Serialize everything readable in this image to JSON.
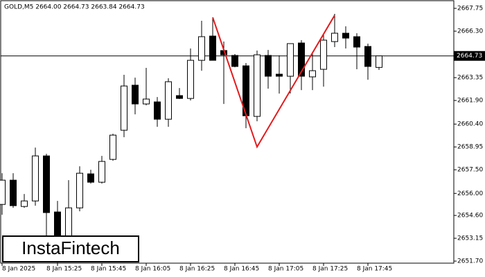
{
  "chart_data": {
    "type": "candlestick",
    "title": "GOLD,M5  2664.00 2664.73 2663.84 2664.73",
    "watermark": "InstaFintech",
    "categories": [
      "8 Jan 2025",
      null,
      null,
      null,
      null,
      "8 Jan 15:25",
      null,
      null,
      null,
      "8 Jan 15:45",
      null,
      null,
      null,
      "8 Jan 16:05",
      null,
      null,
      null,
      "8 Jan 16:25",
      null,
      null,
      null,
      "8 Jan 16:45",
      null,
      null,
      null,
      "8 Jan 17:05",
      null,
      null,
      null,
      "8 Jan 17:25",
      null,
      null,
      null,
      "8 Jan 17:45",
      null
    ],
    "open": [
      2655.3,
      2656.84,
      2655.17,
      2655.52,
      2658.38,
      2654.82,
      2652.88,
      2655.08,
      2657.24,
      2656.71,
      2658.16,
      2660.01,
      2662.87,
      2661.68,
      2661.81,
      2660.71,
      2662.21,
      2662.03,
      2664.45,
      2665.99,
      2665.07,
      2664.76,
      2664.1,
      2660.89,
      2664.76,
      2663.57,
      2663.44,
      2665.55,
      2663.4,
      2663.88,
      2665.64,
      2666.17,
      2665.95,
      2665.33,
      2664.0
    ],
    "high": [
      2657.28,
      2657.28,
      2655.96,
      2658.91,
      2658.51,
      2655.52,
      2656.84,
      2657.72,
      2657.5,
      2658.38,
      2659.79,
      2663.53,
      2663.35,
      2663.97,
      2662.12,
      2663.31,
      2662.69,
      2665.2,
      2666.96,
      2667.09,
      2665.64,
      2664.85,
      2664.28,
      2665.07,
      2665.11,
      2664.76,
      2665.51,
      2665.73,
      2664.85,
      2666.08,
      2667.4,
      2666.61,
      2666.17,
      2665.51,
      2664.73
    ],
    "low": [
      2654.64,
      2655.08,
      2655.08,
      2655.22,
      2653.1,
      2651.6,
      2652.22,
      2654.86,
      2656.62,
      2656.62,
      2658.07,
      2659.57,
      2661.02,
      2661.59,
      2660.23,
      2660.23,
      2661.99,
      2661.9,
      2663.79,
      2664.45,
      2661.68,
      2664.01,
      2660.14,
      2660.58,
      2662.65,
      2662.34,
      2662.34,
      2662.56,
      2662.56,
      2662.78,
      2665.29,
      2665.2,
      2663.88,
      2663.22,
      2663.84
    ],
    "close": [
      2656.84,
      2655.22,
      2655.52,
      2658.38,
      2654.78,
      2652.44,
      2655.08,
      2657.28,
      2656.71,
      2658.03,
      2659.7,
      2662.82,
      2661.68,
      2661.99,
      2660.71,
      2663.09,
      2662.03,
      2664.45,
      2665.95,
      2664.45,
      2664.8,
      2664.06,
      2660.93,
      2664.8,
      2663.44,
      2663.44,
      2665.51,
      2663.44,
      2663.79,
      2665.73,
      2666.17,
      2665.86,
      2665.29,
      2664.06,
      2664.73
    ],
    "up_color": "#ffffff",
    "down_color": "#000000",
    "current_price": 2664.73,
    "pattern_line": {
      "color": "#e31a1c",
      "x": [
        19,
        23,
        30
      ],
      "y": [
        2667.18,
        2658.95,
        2667.31
      ]
    },
    "ylim": [
      2651.57,
      2668.28
    ],
    "yticks": [
      2667.75,
      {
        "value": 2666.3,
        "label": "2666.30"
      },
      2663.35,
      {
        "value": 2661.9,
        "label": "2661.90"
      },
      {
        "value": 2660.4,
        "label": "2660.40"
      },
      2658.95,
      {
        "value": 2657.5,
        "label": "2657.50"
      },
      {
        "value": 2656.0,
        "label": "2656.00"
      },
      {
        "value": 2654.6,
        "label": "2654.60"
      },
      2653.15,
      {
        "value": 2651.7,
        "label": "2651.70"
      }
    ]
  }
}
